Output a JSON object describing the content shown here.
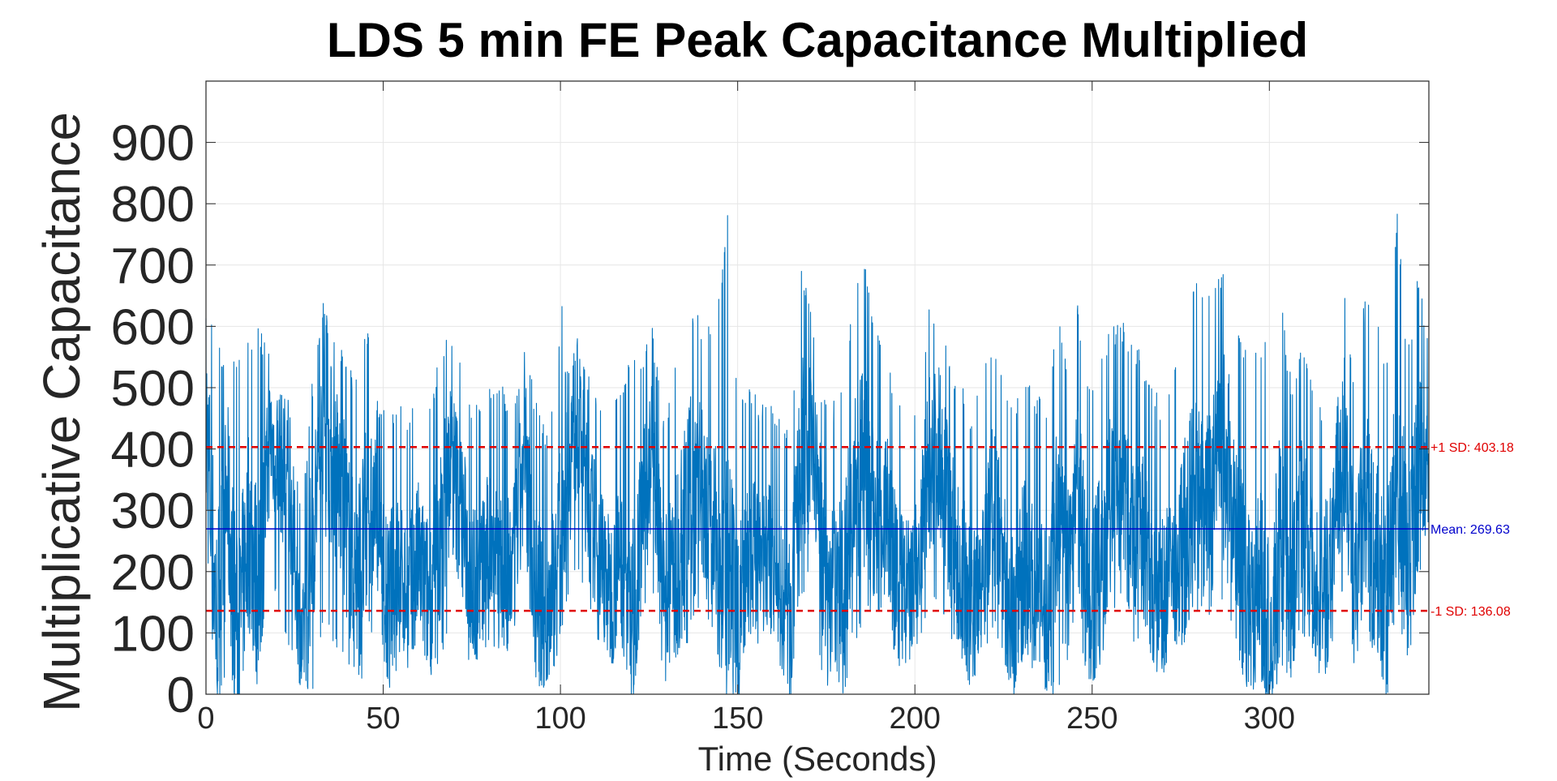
{
  "chart_data": {
    "type": "line",
    "title": "LDS 5 min FE Peak Capacitance Multiplied",
    "xlabel": "Time (Seconds)",
    "ylabel": "Multiplicative Capacitance",
    "xlim": [
      0,
      345
    ],
    "ylim": [
      0,
      1000
    ],
    "xticks": [
      0,
      50,
      100,
      150,
      200,
      250,
      300
    ],
    "yticks": [
      0,
      100,
      200,
      300,
      400,
      500,
      600,
      700,
      800,
      900
    ],
    "grid": true,
    "series": [
      {
        "name": "",
        "color": "#0072BD",
        "x": [
          0,
          3,
          6,
          9,
          12,
          15,
          18,
          21,
          24,
          27,
          30,
          33,
          36,
          39,
          42,
          45,
          48,
          51,
          54,
          57,
          60,
          63,
          66,
          69,
          72,
          75,
          78,
          81,
          84,
          87,
          90,
          93,
          96,
          99,
          102,
          105,
          108,
          111,
          114,
          117,
          120,
          123,
          126,
          129,
          132,
          135,
          138,
          141,
          144,
          147,
          150,
          153,
          156,
          159,
          162,
          165,
          168,
          171,
          174,
          177,
          180,
          183,
          186,
          189,
          192,
          195,
          198,
          201,
          204,
          207,
          210,
          213,
          216,
          219,
          222,
          225,
          228,
          231,
          234,
          237,
          240,
          243,
          246,
          249,
          252,
          255,
          258,
          261,
          264,
          267,
          270,
          273,
          276,
          279,
          282,
          285,
          288,
          291,
          294,
          297,
          300,
          303,
          306,
          309,
          312,
          315,
          318,
          321,
          324,
          327,
          330,
          333,
          336,
          339,
          342,
          345
        ],
        "y": [
          450,
          120,
          320,
          80,
          280,
          150,
          420,
          380,
          310,
          60,
          250,
          420,
          380,
          300,
          180,
          250,
          310,
          150,
          200,
          160,
          220,
          150,
          250,
          380,
          300,
          180,
          200,
          260,
          170,
          220,
          390,
          150,
          130,
          200,
          400,
          450,
          300,
          240,
          160,
          220,
          120,
          280,
          400,
          140,
          200,
          260,
          380,
          300,
          240,
          170,
          120,
          260,
          200,
          230,
          160,
          110,
          380,
          420,
          230,
          160,
          200,
          300,
          380,
          260,
          300,
          180,
          160,
          200,
          380,
          400,
          280,
          200,
          130,
          220,
          300,
          200,
          120,
          220,
          160,
          130,
          260,
          210,
          330,
          140,
          200,
          300,
          350,
          260,
          280,
          170,
          160,
          200,
          260,
          320,
          290,
          350,
          400,
          230,
          160,
          180,
          120,
          240,
          150,
          300,
          200,
          140,
          260,
          420,
          180,
          300,
          230,
          120,
          380,
          200,
          360,
          320
        ],
        "ymax": [
          650,
          580,
          560,
          540,
          580,
          600,
          560,
          520,
          480,
          300,
          520,
          640,
          600,
          560,
          520,
          620,
          500,
          460,
          480,
          460,
          520,
          480,
          560,
          600,
          540,
          470,
          480,
          520,
          500,
          480,
          600,
          480,
          440,
          520,
          760,
          600,
          520,
          500,
          460,
          500,
          560,
          560,
          600,
          460,
          520,
          640,
          640,
          600,
          600,
          800,
          500,
          520,
          480,
          500,
          460,
          450,
          720,
          620,
          480,
          480,
          520,
          660,
          700,
          600,
          560,
          500,
          480,
          500,
          640,
          620,
          540,
          520,
          460,
          520,
          600,
          520,
          470,
          540,
          500,
          460,
          620,
          560,
          640,
          500,
          540,
          600,
          620,
          580,
          560,
          500,
          480,
          560,
          620,
          700,
          640,
          680,
          720,
          600,
          560,
          560,
          640,
          660,
          520,
          560,
          520,
          480,
          600,
          700,
          520,
          660,
          620,
          560,
          800,
          560,
          700,
          560
        ],
        "ymin": [
          0,
          0,
          0,
          0,
          0,
          40,
          180,
          120,
          60,
          0,
          0,
          120,
          80,
          60,
          0,
          20,
          120,
          0,
          40,
          60,
          80,
          40,
          40,
          120,
          80,
          40,
          60,
          80,
          60,
          60,
          120,
          0,
          0,
          60,
          160,
          200,
          120,
          80,
          40,
          80,
          0,
          120,
          160,
          0,
          60,
          40,
          140,
          120,
          60,
          0,
          0,
          100,
          60,
          100,
          60,
          0,
          160,
          180,
          20,
          0,
          0,
          40,
          160,
          80,
          100,
          40,
          60,
          60,
          140,
          160,
          80,
          60,
          0,
          60,
          100,
          60,
          0,
          60,
          40,
          0,
          0,
          40,
          120,
          0,
          40,
          100,
          140,
          80,
          80,
          40,
          60,
          80,
          80,
          140,
          120,
          140,
          160,
          60,
          0,
          40,
          0,
          40,
          0,
          100,
          60,
          20,
          80,
          180,
          40,
          100,
          60,
          0,
          140,
          40,
          140,
          120
        ]
      }
    ],
    "reference_lines": [
      {
        "label": "+1 SD: 403.18",
        "value": 403.18,
        "color": "#E00000",
        "style": "dashed"
      },
      {
        "label": "Mean: 269.63",
        "value": 269.63,
        "color": "#0000CC",
        "style": "solid"
      },
      {
        "label": "-1 SD: 136.08",
        "value": 136.08,
        "color": "#E00000",
        "style": "dashed"
      }
    ]
  }
}
